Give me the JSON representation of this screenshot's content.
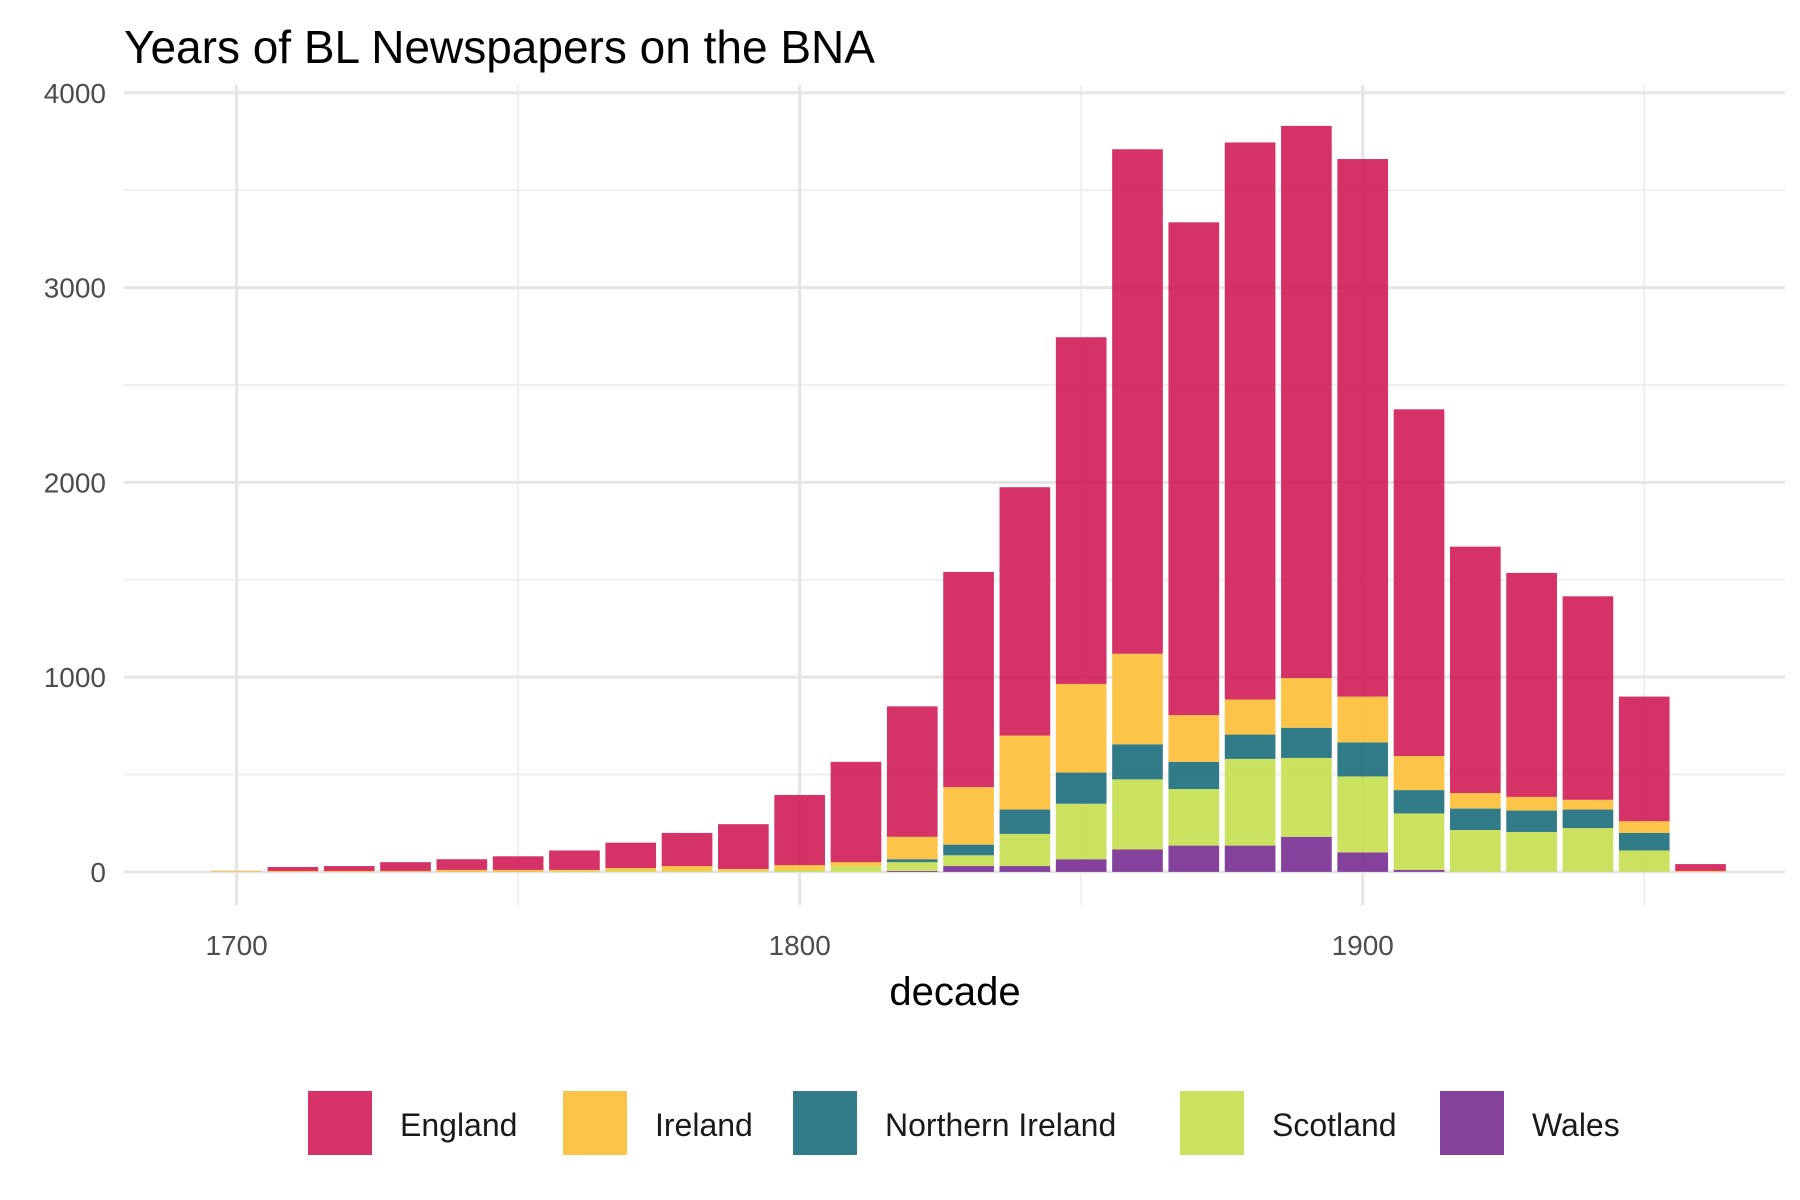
{
  "chart_data": {
    "type": "bar",
    "stacked": true,
    "title": "Years of BL Newspapers on the BNA",
    "xlabel": "decade",
    "ylabel": "",
    "x": [
      1700,
      1710,
      1720,
      1730,
      1740,
      1750,
      1760,
      1770,
      1780,
      1790,
      1800,
      1810,
      1820,
      1830,
      1840,
      1850,
      1860,
      1870,
      1880,
      1890,
      1900,
      1910,
      1920,
      1930,
      1940,
      1950,
      1960
    ],
    "xlim": [
      1680,
      1975
    ],
    "ylim": [
      -170,
      4040
    ],
    "x_ticks": [
      1700,
      1800,
      1900
    ],
    "x_tick_labels": [
      "1700",
      "1800",
      "1900"
    ],
    "y_ticks": [
      0,
      1000,
      2000,
      3000,
      4000
    ],
    "y_tick_labels": [
      "0",
      "1000",
      "2000",
      "3000",
      "4000"
    ],
    "grid": true,
    "legend_position": "bottom",
    "series": [
      {
        "name": "Wales",
        "color": "#7b3294",
        "values": [
          0,
          0,
          0,
          0,
          0,
          0,
          0,
          0,
          0,
          0,
          0,
          0,
          5,
          30,
          30,
          65,
          115,
          135,
          135,
          180,
          100,
          10,
          0,
          0,
          0,
          0,
          0
        ]
      },
      {
        "name": "Scotland",
        "color": "#c7df52",
        "values": [
          0,
          0,
          0,
          0,
          0,
          0,
          5,
          5,
          5,
          5,
          10,
          30,
          45,
          55,
          165,
          285,
          360,
          290,
          445,
          405,
          390,
          290,
          215,
          205,
          225,
          110,
          0
        ]
      },
      {
        "name": "Northern Ireland",
        "color": "#21707e",
        "values": [
          0,
          0,
          0,
          0,
          0,
          0,
          0,
          0,
          0,
          0,
          0,
          0,
          15,
          55,
          125,
          160,
          180,
          140,
          125,
          155,
          175,
          120,
          110,
          110,
          95,
          90,
          0
        ]
      },
      {
        "name": "Ireland",
        "color": "#fcbf3a",
        "values": [
          5,
          5,
          5,
          5,
          10,
          10,
          5,
          15,
          25,
          10,
          25,
          20,
          115,
          295,
          380,
          455,
          465,
          240,
          180,
          255,
          235,
          175,
          80,
          70,
          50,
          60,
          5
        ]
      },
      {
        "name": "England",
        "color": "#d1225b",
        "values": [
          0,
          20,
          25,
          45,
          55,
          70,
          100,
          130,
          170,
          230,
          360,
          515,
          670,
          1105,
          1275,
          1780,
          2590,
          2530,
          2860,
          2835,
          2760,
          1780,
          1265,
          1150,
          1045,
          640,
          35
        ]
      }
    ],
    "legend_order": [
      "England",
      "Ireland",
      "Northern Ireland",
      "Scotland",
      "Wales"
    ]
  }
}
